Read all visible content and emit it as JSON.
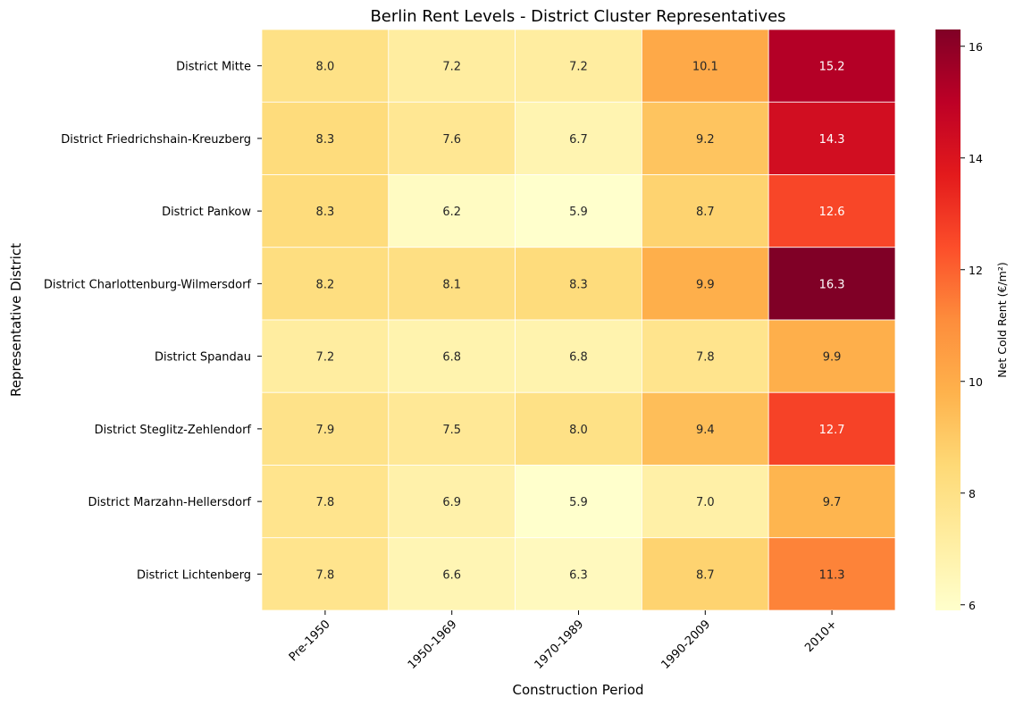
{
  "chart_data": {
    "type": "heatmap",
    "title": "Berlin Rent Levels - District Cluster Representatives",
    "xlabel": "Construction Period",
    "ylabel": "Representative District",
    "colorbar_label": "Net Cold Rent (€/m²)",
    "colormap": "YlOrRd",
    "value_range": [
      5.9,
      16.3
    ],
    "colorbar_ticks": [
      "6",
      "8",
      "10",
      "12",
      "14",
      "16"
    ],
    "x_categories": [
      "Pre-1950",
      "1950-1969",
      "1970-1989",
      "1990-2009",
      "2010+"
    ],
    "y_categories": [
      "District Mitte",
      "District Friedrichshain-Kreuzberg",
      "District Pankow",
      "District Charlottenburg-Wilmersdorf",
      "District Spandau",
      "District Steglitz-Zehlendorf",
      "District Marzahn-Hellersdorf",
      "District Lichtenberg"
    ],
    "values": [
      [
        8.0,
        7.2,
        7.2,
        10.1,
        15.2
      ],
      [
        8.3,
        7.6,
        6.7,
        9.2,
        14.3
      ],
      [
        8.3,
        6.2,
        5.9,
        8.7,
        12.6
      ],
      [
        8.2,
        8.1,
        8.3,
        9.9,
        16.3
      ],
      [
        7.2,
        6.8,
        6.8,
        7.8,
        9.9
      ],
      [
        7.9,
        7.5,
        8.0,
        9.4,
        12.7
      ],
      [
        7.8,
        6.9,
        5.9,
        7.0,
        9.7
      ],
      [
        7.8,
        6.6,
        6.3,
        8.7,
        11.3
      ]
    ],
    "value_labels": [
      [
        "8.0",
        "7.2",
        "7.2",
        "10.1",
        "15.2"
      ],
      [
        "8.3",
        "7.6",
        "6.7",
        "9.2",
        "14.3"
      ],
      [
        "8.3",
        "6.2",
        "5.9",
        "8.7",
        "12.6"
      ],
      [
        "8.2",
        "8.1",
        "8.3",
        "9.9",
        "16.3"
      ],
      [
        "7.2",
        "6.8",
        "6.8",
        "7.8",
        "9.9"
      ],
      [
        "7.9",
        "7.5",
        "8.0",
        "9.4",
        "12.7"
      ],
      [
        "7.8",
        "6.9",
        "5.9",
        "7.0",
        "9.7"
      ],
      [
        "7.8",
        "6.6",
        "6.3",
        "8.7",
        "11.3"
      ]
    ],
    "annotations": true,
    "grid_lines": "white"
  }
}
